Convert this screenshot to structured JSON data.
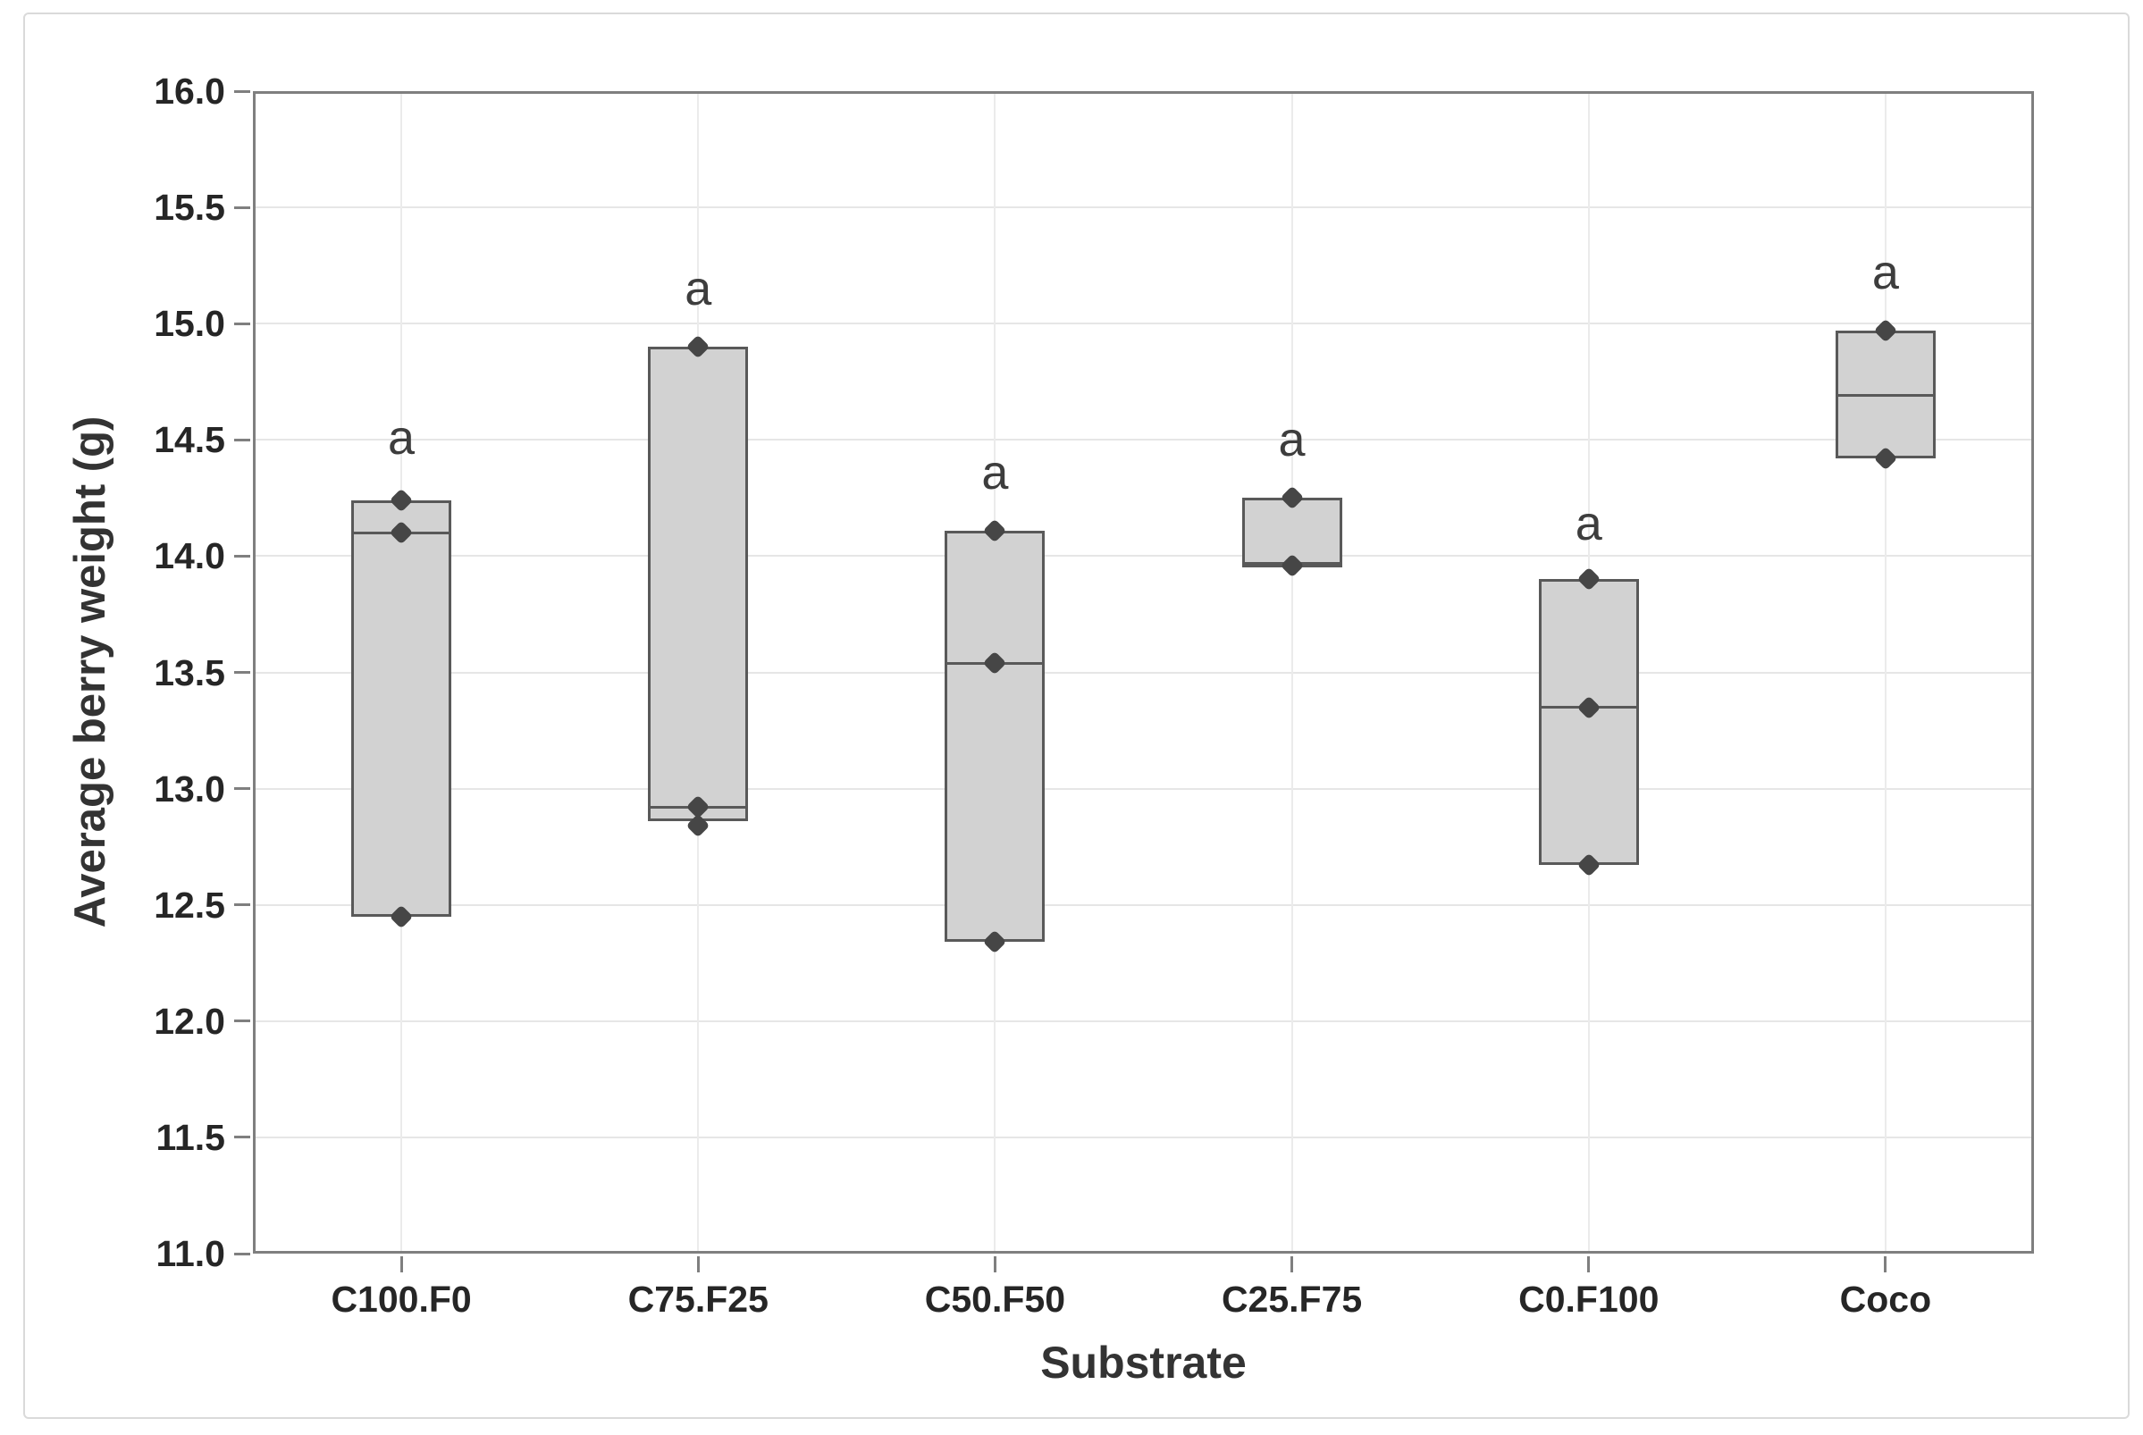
{
  "figure": {
    "background": "#ffffff",
    "outer_border_color": "#dadada"
  },
  "chart_data": {
    "type": "box",
    "title": "",
    "xlabel": "Substrate",
    "ylabel": "Average berry weight (g)",
    "ylim": [
      11.0,
      16.0
    ],
    "ytick_labels": [
      "16.0",
      "15.5",
      "15.0",
      "14.5",
      "14.0",
      "13.5",
      "13.0",
      "12.5",
      "12.0",
      "11.5",
      "11.0"
    ],
    "grid": true,
    "legend": "none",
    "categories": [
      "C100.F0",
      "C75.F25",
      "C50.F50",
      "C25.F75",
      "C0.F100",
      "Coco"
    ],
    "groups": [
      {
        "label": "C100.F0",
        "box_low": 12.45,
        "box_high": 14.24,
        "median": 14.1,
        "points": [
          14.24,
          14.1,
          12.45
        ],
        "sig": "a",
        "sig_y": 14.51
      },
      {
        "label": "C75.F25",
        "box_low": 12.86,
        "box_high": 14.9,
        "median": 12.92,
        "points": [
          14.9,
          12.92,
          12.84
        ],
        "sig": "a",
        "sig_y": 15.15
      },
      {
        "label": "C50.F50",
        "box_low": 12.34,
        "box_high": 14.11,
        "median": 13.54,
        "points": [
          14.11,
          13.54,
          12.34
        ],
        "sig": "a",
        "sig_y": 14.36
      },
      {
        "label": "C25.F75",
        "box_low": 13.95,
        "box_high": 14.25,
        "median": 13.97,
        "points": [
          14.25,
          13.96
        ],
        "sig": "a",
        "sig_y": 14.5
      },
      {
        "label": "C0.F100",
        "box_low": 12.67,
        "box_high": 13.9,
        "median": 13.35,
        "points": [
          13.9,
          13.35,
          12.67
        ],
        "sig": "a",
        "sig_y": 14.14
      },
      {
        "label": "Coco",
        "box_low": 14.42,
        "box_high": 14.97,
        "median": 14.69,
        "points": [
          14.97,
          14.42
        ],
        "sig": "a",
        "sig_y": 15.22
      }
    ],
    "colors": {
      "box_fill": "#d2d2d2",
      "box_border": "#595959",
      "point": "#464646",
      "frame": "#7f7f7f",
      "gridline": "#e6e6e6",
      "tick_text": "#262626",
      "title_text": "#333333"
    }
  }
}
